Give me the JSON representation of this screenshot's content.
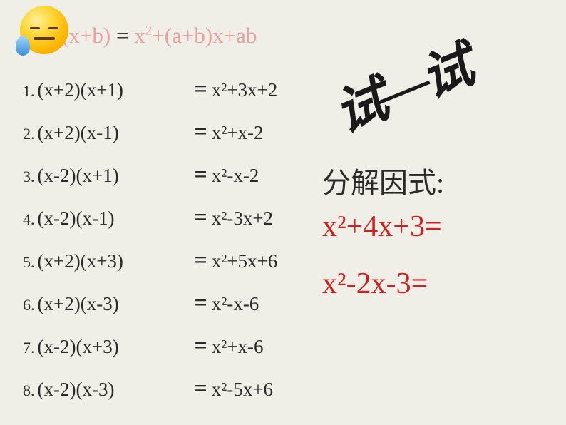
{
  "header": {
    "lhs": "a)(x+b)",
    "eq": "=",
    "rhs_x2": "x",
    "rhs_rest": "+(a+b)x+ab"
  },
  "rows": [
    {
      "num": "1.",
      "lhs": "(x+2)(x+1)",
      "rhs": "x²+3x+2"
    },
    {
      "num": "2.",
      "lhs": "(x+2)(x-1)",
      "rhs": "x²+x-2"
    },
    {
      "num": "3.",
      "lhs": "(x-2)(x+1)",
      "rhs": "x²-x-2"
    },
    {
      "num": "4.",
      "lhs": "(x-2)(x-1)",
      "rhs": "x²-3x+2"
    },
    {
      "num": "5.",
      "lhs": "(x+2)(x+3)",
      "rhs": "x²+5x+6"
    },
    {
      "num": "6.",
      "lhs": "(x+2)(x-3)",
      "rhs": "x²-x-6"
    },
    {
      "num": "7.",
      "lhs": "(x-2)(x+3)",
      "rhs": "x²+x-6"
    },
    {
      "num": "8.",
      "lhs": "(x-2)(x-3)",
      "rhs": "x²-5x+6"
    }
  ],
  "calligraphy": {
    "char1": "试",
    "char2": "试"
  },
  "section_title": "分解因式:",
  "formulas": [
    "x²+4x+3=",
    "x²-2x-3="
  ],
  "colors": {
    "background": "#efefe7",
    "text": "#2a2a2a",
    "header_red": "#e8a0a0",
    "formula_red": "#d02020"
  }
}
